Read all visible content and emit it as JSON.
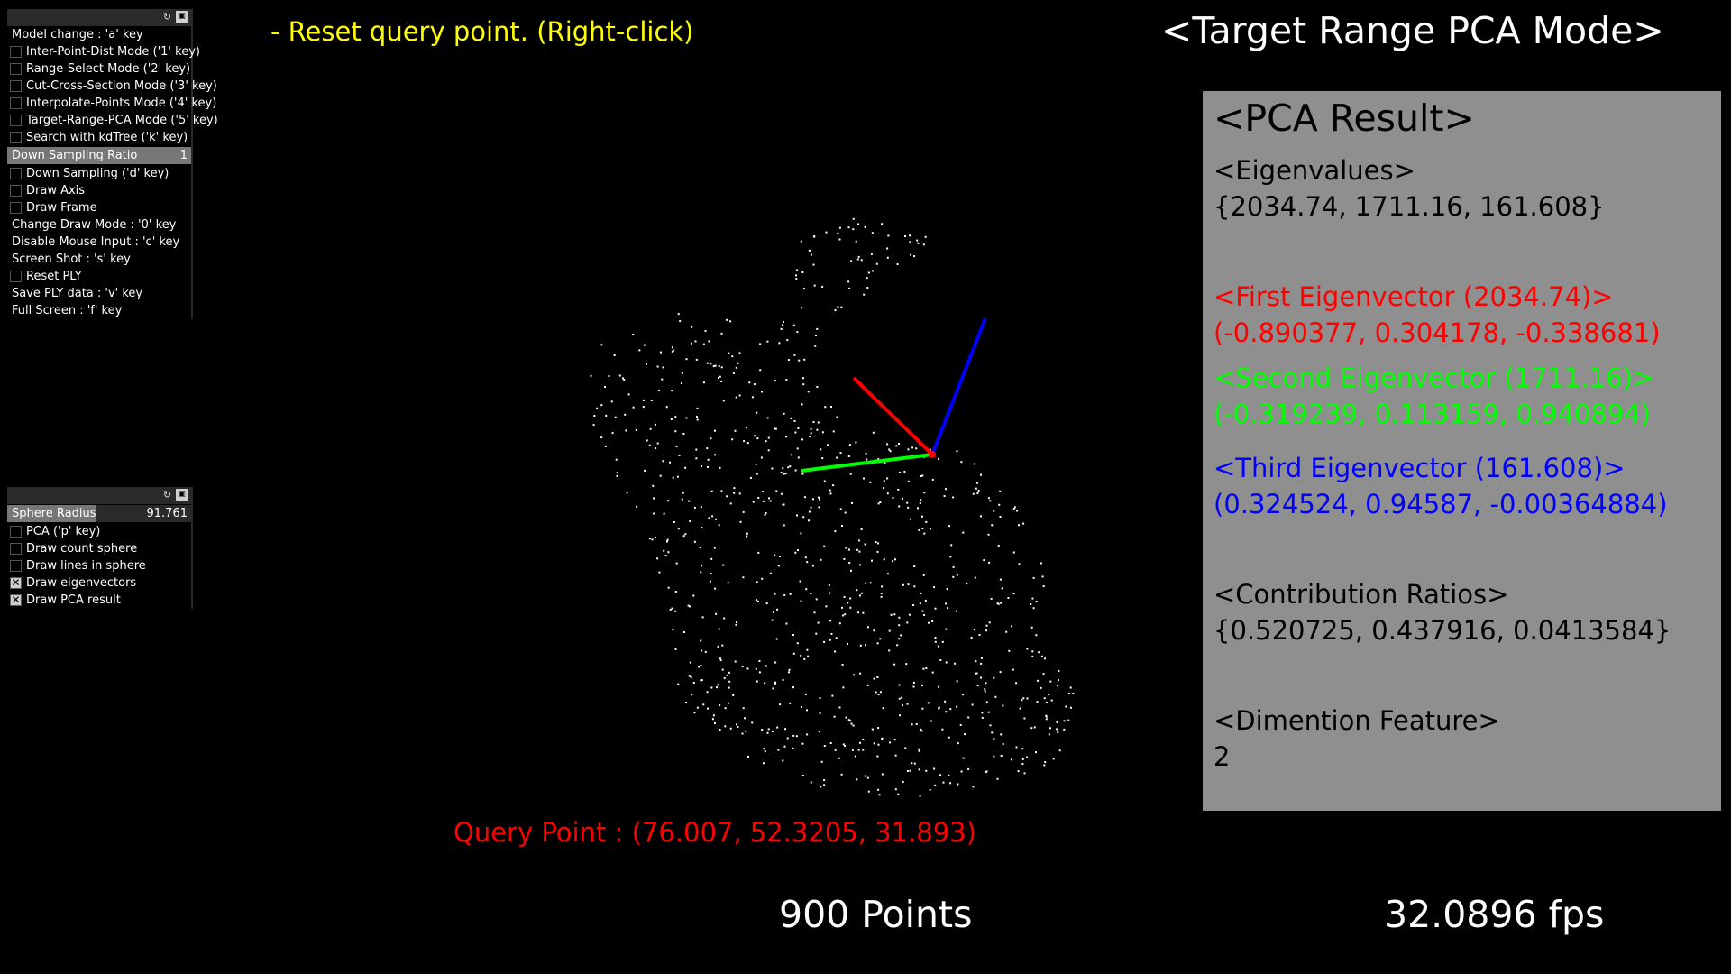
{
  "window": {
    "width": 1920,
    "height": 1080
  },
  "gui_panel_1": {
    "header_icons": [
      "reload-icon",
      "save-icon"
    ],
    "items": [
      {
        "type": "label",
        "text": "Model change : 'a' key"
      },
      {
        "type": "toggle",
        "text": "Inter-Point-Dist Mode ('1' key)",
        "checked": false
      },
      {
        "type": "toggle",
        "text": "Range-Select Mode ('2' key)",
        "checked": false
      },
      {
        "type": "toggle",
        "text": "Cut-Cross-Section Mode ('3' key)",
        "checked": false
      },
      {
        "type": "toggle",
        "text": "Interpolate-Points Mode ('4' key)",
        "checked": false
      },
      {
        "type": "toggle",
        "text": "Target-Range-PCA Mode ('5' key)",
        "checked": false
      },
      {
        "type": "toggle",
        "text": "Search with kdTree ('k' key)",
        "checked": false
      },
      {
        "type": "slider",
        "text": "Down Sampling Ratio",
        "value": "1",
        "fill": 1.0
      },
      {
        "type": "toggle",
        "text": "Down Sampling ('d' key)",
        "checked": false
      },
      {
        "type": "toggle",
        "text": "Draw Axis",
        "checked": false
      },
      {
        "type": "toggle",
        "text": "Draw Frame",
        "checked": false
      },
      {
        "type": "label",
        "text": "Change Draw Mode : '0' key"
      },
      {
        "type": "label",
        "text": "Disable Mouse Input : 'c' key"
      },
      {
        "type": "label",
        "text": "Screen Shot : 's' key"
      },
      {
        "type": "toggle",
        "text": "Reset PLY",
        "checked": false
      },
      {
        "type": "label",
        "text": "Save PLY data : 'v' key"
      },
      {
        "type": "label",
        "text": "Full Screen : 'f' key"
      }
    ]
  },
  "gui_panel_2": {
    "header_icons": [
      "reload-icon",
      "save-icon"
    ],
    "items": [
      {
        "type": "slider",
        "text": "Sphere Radius",
        "value": "91.761",
        "fill": 0.48
      },
      {
        "type": "toggle",
        "text": "PCA ('p' key)",
        "checked": false
      },
      {
        "type": "toggle",
        "text": "Draw count sphere",
        "checked": false
      },
      {
        "type": "toggle",
        "text": "Draw lines in sphere",
        "checked": false
      },
      {
        "type": "toggle",
        "text": "Draw eigenvectors",
        "checked": true
      },
      {
        "type": "toggle",
        "text": "Draw PCA result",
        "checked": true
      }
    ]
  },
  "hint": "- Reset query point. (Right-click)",
  "mode_title": "<Target Range PCA Mode>",
  "pca": {
    "title": "<PCA Result>",
    "eigenvalues_label": "<Eigenvalues>",
    "eigenvalues": "{2034.74, 1711.16, 161.608}",
    "first_label": "<First Eigenvector (2034.74)>",
    "first_value": "(-0.890377, 0.304178, -0.338681)",
    "second_label": "<Second Eigenvector (1711.16)>",
    "second_value": "(-0.319239, 0.113159, 0.940894)",
    "third_label": "<Third Eigenvector (161.608)>",
    "third_value": "(0.324524, 0.94587, -0.00364884)",
    "contribution_label": "<Contribution Ratios>",
    "contribution_value": "{0.520725, 0.437916, 0.0413584}",
    "dimension_label": "<Dimention Feature>",
    "dimension_value": "2"
  },
  "query_point": "Query Point : (76.007, 52.3205, 31.893)",
  "points_count": "900 Points",
  "fps": "32.0896 fps",
  "colors": {
    "background": "#000000",
    "hint": "#ffff00",
    "query": "#ff0000",
    "first_eigenvector": "#ff0000",
    "second_eigenvector": "#00ff00",
    "third_eigenvector": "#0000ff",
    "pca_box": "#8f8f8f",
    "points": "#ffffff"
  },
  "scene": {
    "point_count": 900
  }
}
